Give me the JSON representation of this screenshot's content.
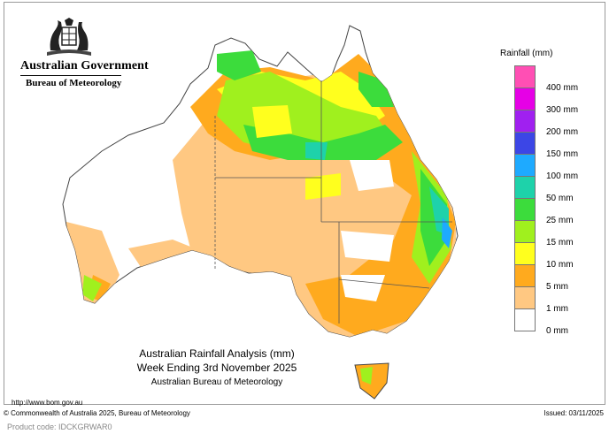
{
  "header": {
    "government": "Australian Government",
    "bureau": "Bureau of Meteorology"
  },
  "legend": {
    "title": "Rainfall (mm)",
    "items": [
      {
        "label": "400 mm",
        "color": "#ff4fb4"
      },
      {
        "label": "300 mm",
        "color": "#e600e6"
      },
      {
        "label": "200 mm",
        "color": "#a020f0"
      },
      {
        "label": "150 mm",
        "color": "#3c46e6"
      },
      {
        "label": "100 mm",
        "color": "#1eaaff"
      },
      {
        "label": "50 mm",
        "color": "#1ed2aa"
      },
      {
        "label": "25 mm",
        "color": "#3cdc3c"
      },
      {
        "label": "15 mm",
        "color": "#a0f01e"
      },
      {
        "label": "10 mm",
        "color": "#ffff1e"
      },
      {
        "label": "5 mm",
        "color": "#ffaa1e"
      },
      {
        "label": "1 mm",
        "color": "#ffc882"
      },
      {
        "label": "0 mm",
        "color": "#ffffff"
      }
    ]
  },
  "caption": {
    "line1": "Australian Rainfall Analysis (mm)",
    "line2": "Week Ending 3rd November 2025",
    "line3": "Australian Bureau of Meteorology"
  },
  "footer": {
    "url": "http://www.bom.gov.au",
    "copyright": "© Commonwealth of Australia 2025, Bureau of Meteorology",
    "issued": "Issued: 03/11/2025",
    "product_code": "Product code: IDCKGRWAR0"
  },
  "icons": {
    "crest": "coat-of-arms-icon"
  }
}
